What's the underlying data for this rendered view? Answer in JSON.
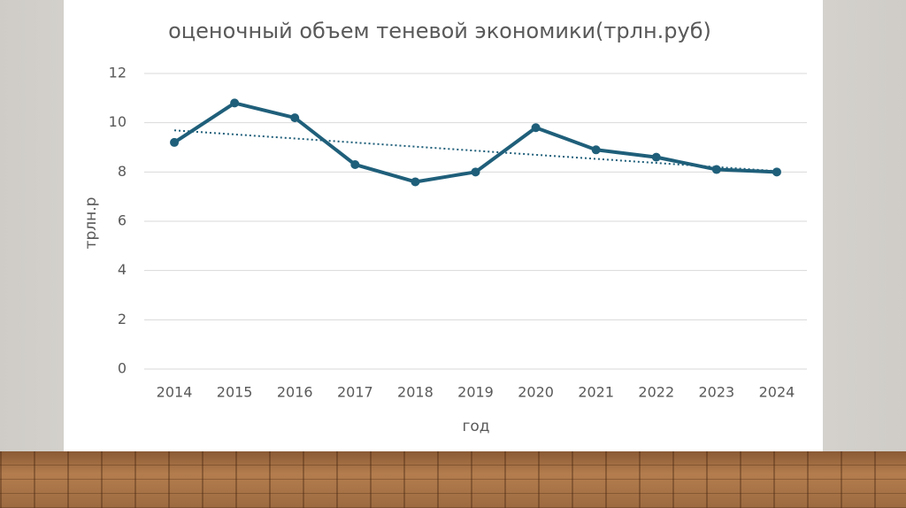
{
  "chart_data": {
    "type": "line",
    "title": "оценочный объем теневой экономики(трлн.руб)",
    "x_label": "год",
    "y_label": "трлн.р",
    "categories": [
      "2014",
      "2015",
      "2016",
      "2017",
      "2018",
      "2019",
      "2020",
      "2021",
      "2022",
      "2023",
      "2024"
    ],
    "values": [
      9.2,
      10.8,
      10.2,
      8.3,
      7.6,
      8.0,
      9.8,
      8.9,
      8.6,
      8.1,
      8.0
    ],
    "color": "#1f5f7a",
    "trendline": true,
    "ylim": [
      0,
      12
    ],
    "yticks": [
      0,
      2,
      4,
      6,
      8,
      10,
      12
    ],
    "grid": true
  }
}
